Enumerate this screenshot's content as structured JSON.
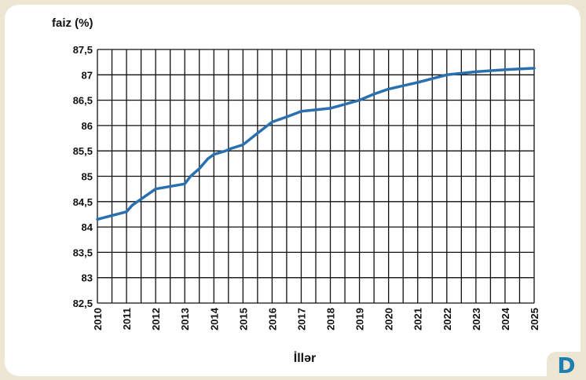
{
  "colors": {
    "background": "#ece6d3",
    "panel": "#ffffff",
    "line": "#2a6fae",
    "grid": "#111111",
    "badge_text": "#1f7fb0"
  },
  "badge": {
    "letter": "D"
  },
  "chart_data": {
    "type": "line",
    "title": "",
    "ylabel": "faiz (%)",
    "xlabel": "İllər",
    "ylim": [
      82.5,
      87.5
    ],
    "ytick_labels": [
      "87,5",
      "87",
      "86,5",
      "86",
      "85,5",
      "85",
      "84,5",
      "84",
      "83,5",
      "83",
      "82,5"
    ],
    "x_tick_labels": [
      "2010",
      "2011",
      "2012",
      "2013",
      "2014",
      "2015",
      "2016",
      "2017",
      "2018",
      "2019",
      "2020",
      "2021",
      "2022",
      "2023",
      "2024",
      "2025"
    ],
    "grid": true,
    "legend": "none",
    "series": [
      {
        "x": [
          2010,
          2011,
          2011.2,
          2012,
          2013,
          2013.2,
          2013.5,
          2013.8,
          2014,
          2014.4,
          2014.6,
          2015,
          2015.5,
          2016,
          2016.5,
          2017,
          2017.5,
          2018,
          2018.5,
          2019,
          2019.5,
          2020,
          2021,
          2022,
          2023,
          2024,
          2025
        ],
        "values": [
          84.15,
          84.3,
          84.43,
          84.75,
          84.85,
          85.0,
          85.15,
          85.35,
          85.43,
          85.5,
          85.55,
          85.62,
          85.85,
          86.07,
          86.17,
          86.28,
          86.31,
          86.34,
          86.42,
          86.5,
          86.62,
          86.72,
          86.85,
          87.0,
          87.06,
          87.1,
          87.13
        ]
      }
    ]
  }
}
